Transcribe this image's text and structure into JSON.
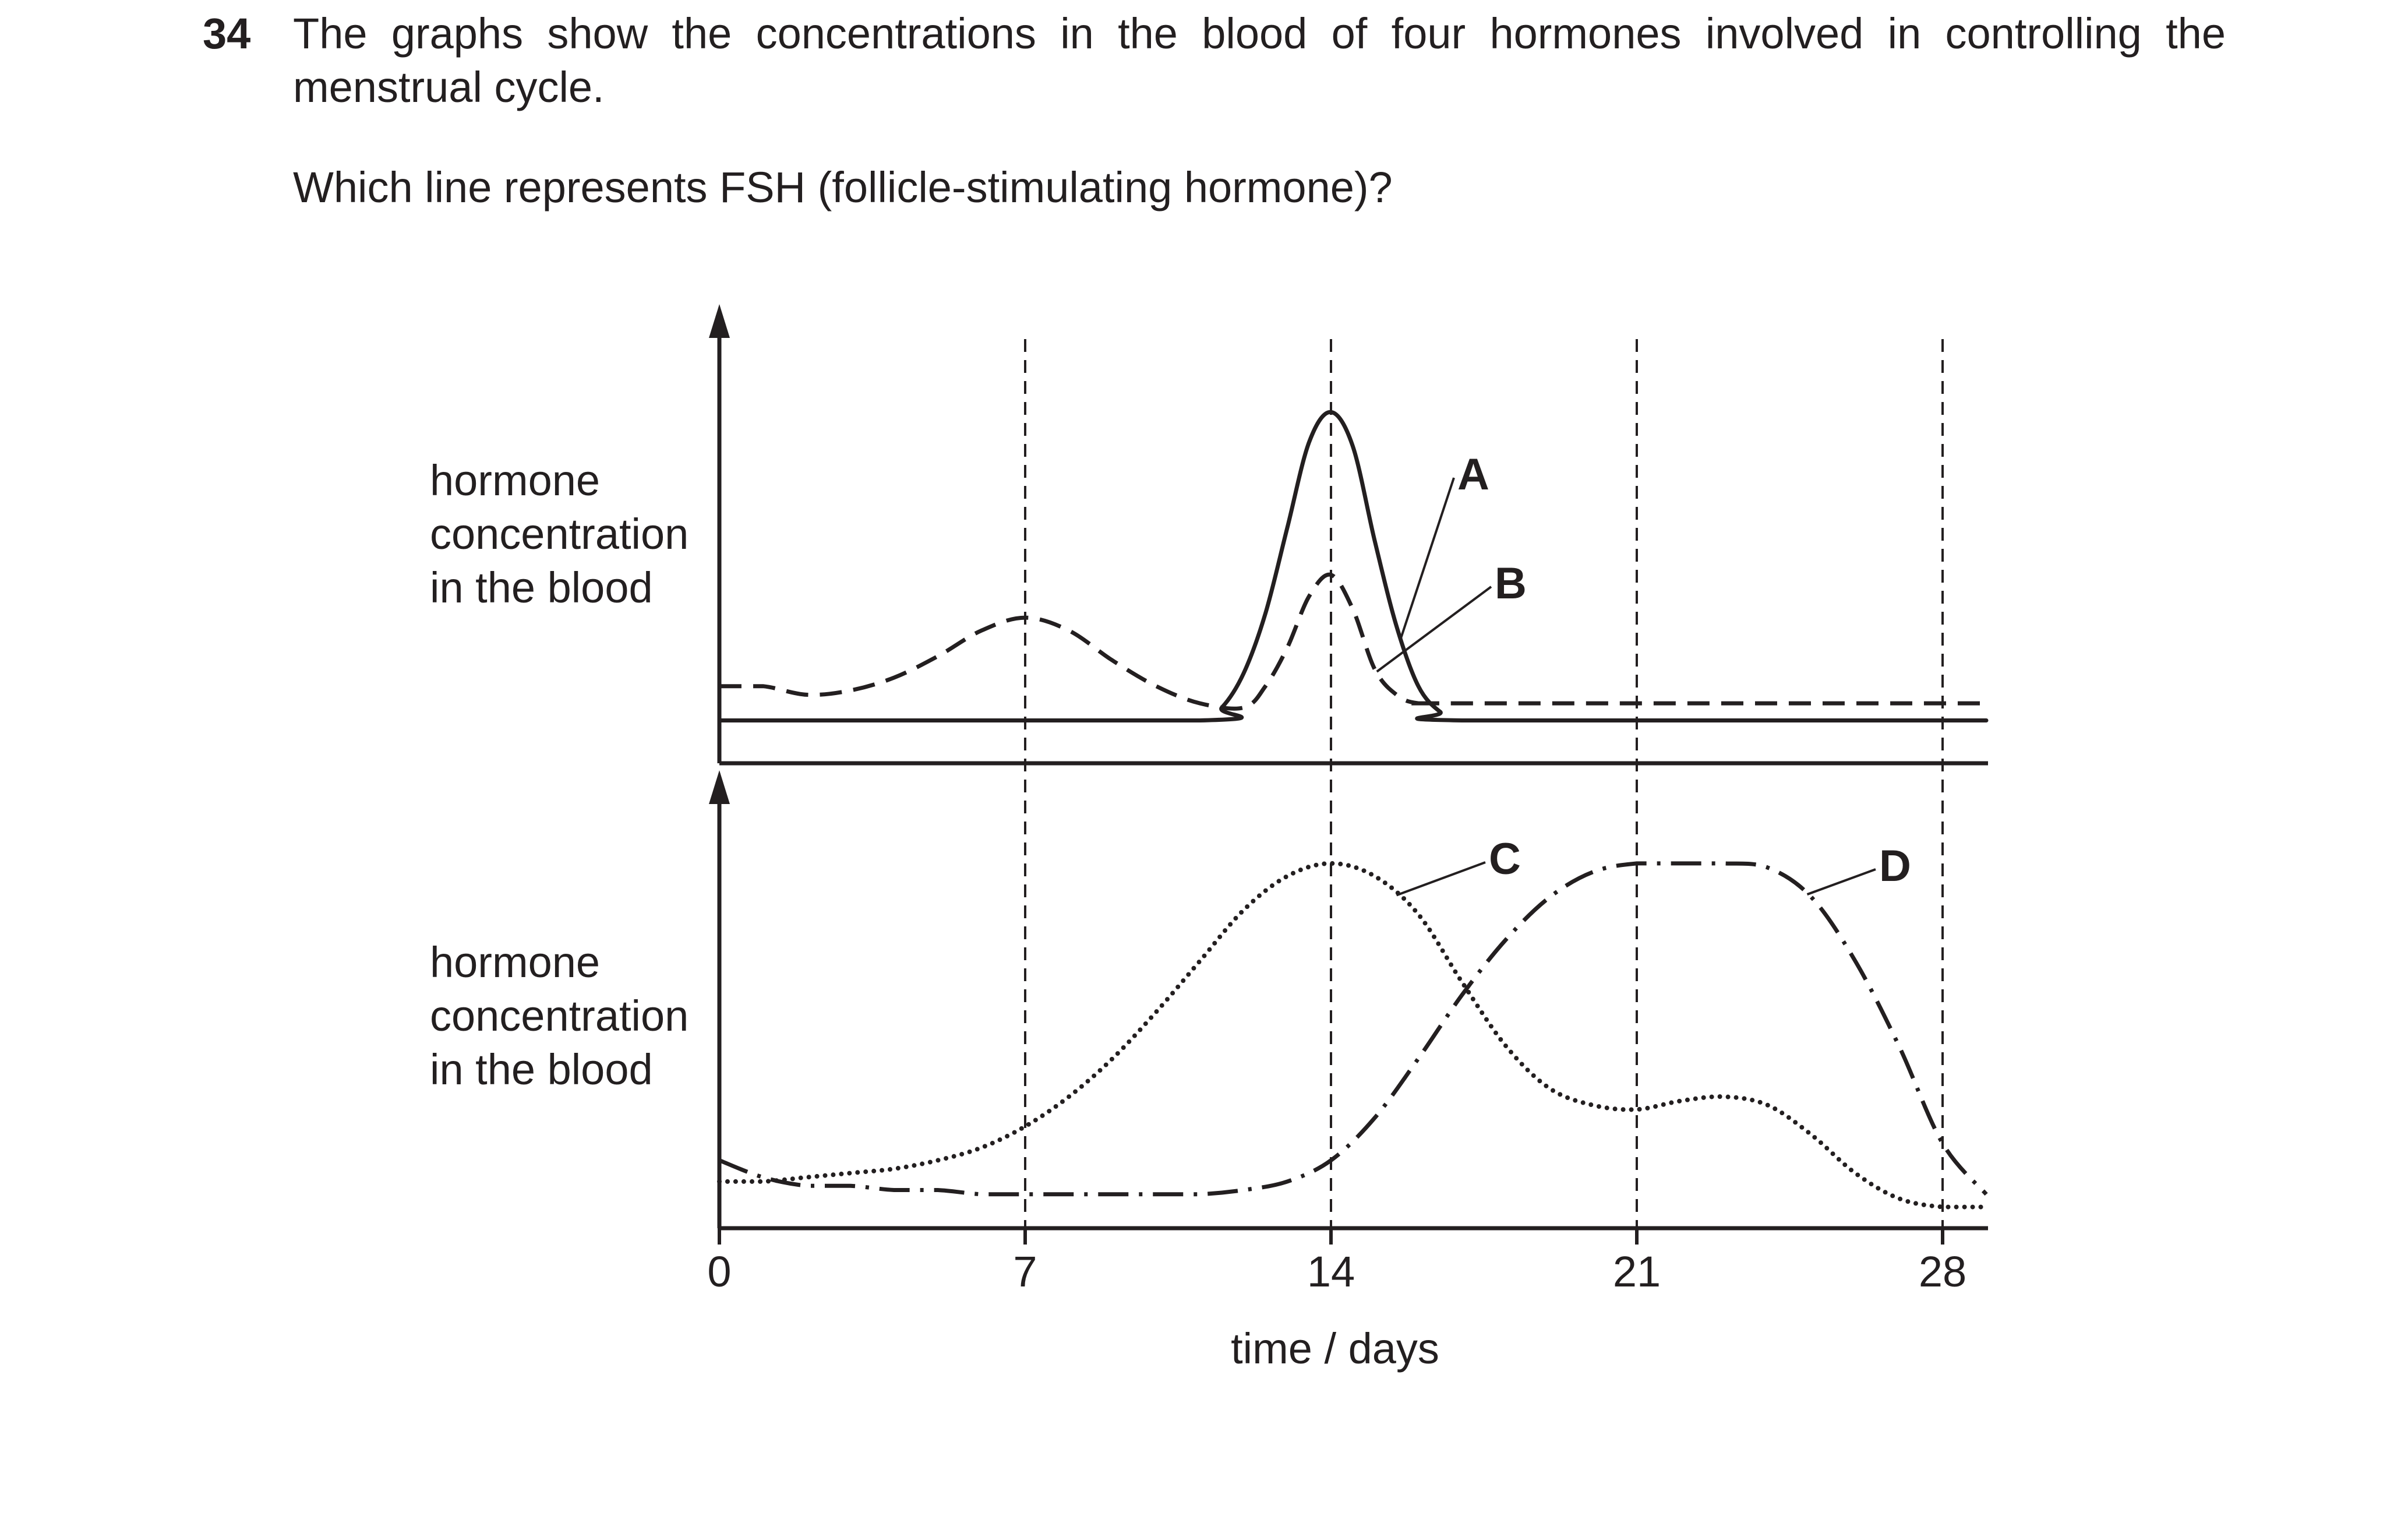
{
  "question": {
    "number": "34",
    "text": "The graphs show the concentrations in the blood of four hormones involved in controlling the menstrual cycle.",
    "prompt": "Which line represents FSH (follicle-stimulating hormone)?"
  },
  "colors": {
    "ink": "#231f20",
    "background": "#ffffff"
  },
  "chart_data": {
    "type": "line",
    "xlabel": "time / days",
    "x_ticks": [
      0,
      7,
      14,
      21,
      28
    ],
    "xlim": [
      0,
      29
    ],
    "vertical_gridlines": [
      7,
      14,
      21,
      28
    ],
    "gridline_style": "dashed",
    "y_tick_labels": "none",
    "panels": [
      {
        "panel": "top",
        "ylabel": [
          "hormone",
          "concentration",
          "in the blood"
        ],
        "ylim": [
          0,
          1
        ],
        "series": [
          {
            "name": "A",
            "line_style": "solid",
            "x": [
              0,
              11,
              11.5,
              12,
              12.5,
              13,
              13.5,
              14,
              14.5,
              15,
              15.5,
              16,
              16.5,
              17,
              29
            ],
            "y": [
              0.1,
              0.1,
              0.13,
              0.21,
              0.35,
              0.55,
              0.75,
              0.82,
              0.74,
              0.52,
              0.32,
              0.18,
              0.12,
              0.1,
              0.1
            ]
          },
          {
            "name": "B",
            "line_style": "dashed",
            "x": [
              0,
              1,
              2,
              3,
              4,
              5,
              6,
              7,
              8,
              9,
              10,
              11,
              12,
              12.5,
              13,
              13.5,
              14,
              14.5,
              15,
              15.5,
              16,
              17,
              29
            ],
            "y": [
              0.18,
              0.18,
              0.16,
              0.17,
              0.2,
              0.25,
              0.31,
              0.34,
              0.31,
              0.24,
              0.18,
              0.14,
              0.13,
              0.18,
              0.27,
              0.39,
              0.44,
              0.36,
              0.22,
              0.16,
              0.14,
              0.14,
              0.14
            ]
          }
        ]
      },
      {
        "panel": "bottom",
        "ylabel": [
          "hormone",
          "concentration",
          "in the blood"
        ],
        "ylim": [
          0,
          1
        ],
        "series": [
          {
            "name": "C",
            "line_style": "dotted",
            "x": [
              0,
              1,
              2,
              3,
              4,
              5,
              6,
              7,
              8,
              9,
              10,
              11,
              12,
              13,
              14,
              15,
              16,
              17,
              18,
              19,
              20,
              21,
              22,
              23,
              24,
              25,
              26,
              27,
              28,
              29
            ],
            "y": [
              0.11,
              0.11,
              0.12,
              0.13,
              0.14,
              0.16,
              0.19,
              0.24,
              0.31,
              0.4,
              0.51,
              0.63,
              0.75,
              0.83,
              0.86,
              0.83,
              0.74,
              0.58,
              0.43,
              0.33,
              0.29,
              0.28,
              0.3,
              0.31,
              0.29,
              0.22,
              0.13,
              0.07,
              0.05,
              0.05
            ]
          },
          {
            "name": "D",
            "line_style": "dash-dot",
            "x": [
              0,
              1,
              2,
              3,
              4,
              5,
              6,
              7,
              8,
              9,
              10,
              11,
              12,
              13,
              14,
              15,
              16,
              17,
              18,
              19,
              20,
              21,
              22,
              23,
              24,
              25,
              26,
              27,
              28,
              29
            ],
            "y": [
              0.16,
              0.12,
              0.1,
              0.1,
              0.09,
              0.09,
              0.08,
              0.08,
              0.08,
              0.08,
              0.08,
              0.08,
              0.09,
              0.11,
              0.16,
              0.26,
              0.4,
              0.55,
              0.68,
              0.78,
              0.84,
              0.86,
              0.86,
              0.86,
              0.85,
              0.78,
              0.63,
              0.43,
              0.2,
              0.08
            ]
          }
        ]
      }
    ]
  }
}
